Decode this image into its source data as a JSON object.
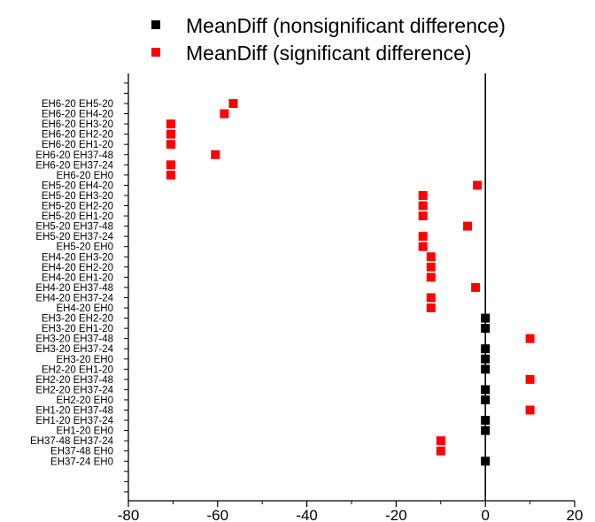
{
  "chart_data": {
    "type": "scatter",
    "legend": {
      "placement": "top",
      "entries": [
        {
          "label": "MeanDiff (nonsignificant difference)",
          "color": "#000000"
        },
        {
          "label": "MeanDiff (significant difference)",
          "color": "#ff0000"
        }
      ]
    },
    "xlim": [
      -80,
      20
    ],
    "xticks": [
      "-80",
      "-60",
      "-40",
      "-20",
      "0",
      "20"
    ],
    "categories": [
      "EH6-20  EH5-20",
      "EH6-20  EH4-20",
      "EH6-20  EH3-20",
      "EH6-20  EH2-20",
      "EH6-20  EH1-20",
      "EH6-20  EH37-48",
      "EH6-20  EH37-24",
      "EH6-20  EH0",
      "EH5-20  EH4-20",
      "EH5-20  EH3-20",
      "EH5-20  EH2-20",
      "EH5-20  EH1-20",
      "EH5-20  EH37-48",
      "EH5-20  EH37-24",
      "EH5-20  EH0",
      "EH4-20  EH3-20",
      "EH4-20  EH2-20",
      "EH4-20  EH1-20",
      "EH4-20  EH37-48",
      "EH4-20  EH37-24",
      "EH4-20  EH0",
      "EH3-20  EH2-20",
      "EH3-20  EH1-20",
      "EH3-20  EH37-48",
      "EH3-20  EH37-24",
      "EH3-20  EH0",
      "EH2-20  EH1-20",
      "EH2-20  EH37-48",
      "EH2-20  EH37-24",
      "EH2-20  EH0",
      "EH1-20  EH37-48",
      "EH1-20  EH37-24",
      "EH1-20  EH0",
      "EH37-48  EH37-24",
      "EH37-48  EH0",
      "EH37-24  EH0"
    ],
    "series": [
      {
        "name": "MeanDiff (nonsignificant difference)",
        "color": "#000000",
        "points": [
          {
            "category": "EH3-20  EH2-20",
            "x": 0
          },
          {
            "category": "EH3-20  EH1-20",
            "x": 0
          },
          {
            "category": "EH3-20  EH37-24",
            "x": 0
          },
          {
            "category": "EH3-20  EH0",
            "x": 0
          },
          {
            "category": "EH2-20  EH1-20",
            "x": 0
          },
          {
            "category": "EH2-20  EH37-24",
            "x": 0
          },
          {
            "category": "EH2-20  EH0",
            "x": 0
          },
          {
            "category": "EH1-20  EH37-24",
            "x": 0
          },
          {
            "category": "EH1-20  EH0",
            "x": 0
          },
          {
            "category": "EH37-24  EH0",
            "x": 0
          }
        ]
      },
      {
        "name": "MeanDiff (significant difference)",
        "color": "#ff0000",
        "points": [
          {
            "category": "EH6-20  EH5-20",
            "x": -56.5
          },
          {
            "category": "EH6-20  EH4-20",
            "x": -58.5
          },
          {
            "category": "EH6-20  EH3-20",
            "x": -70.5
          },
          {
            "category": "EH6-20  EH2-20",
            "x": -70.5
          },
          {
            "category": "EH6-20  EH1-20",
            "x": -70.5
          },
          {
            "category": "EH6-20  EH37-48",
            "x": -60.5
          },
          {
            "category": "EH6-20  EH37-24",
            "x": -70.5
          },
          {
            "category": "EH6-20  EH0",
            "x": -70.5
          },
          {
            "category": "EH5-20  EH4-20",
            "x": -1.8
          },
          {
            "category": "EH5-20  EH3-20",
            "x": -14
          },
          {
            "category": "EH5-20  EH2-20",
            "x": -14
          },
          {
            "category": "EH5-20  EH1-20",
            "x": -14
          },
          {
            "category": "EH5-20  EH37-48",
            "x": -4
          },
          {
            "category": "EH5-20  EH37-24",
            "x": -14
          },
          {
            "category": "EH5-20  EH0",
            "x": -14
          },
          {
            "category": "EH4-20  EH3-20",
            "x": -12.2
          },
          {
            "category": "EH4-20  EH2-20",
            "x": -12.2
          },
          {
            "category": "EH4-20  EH1-20",
            "x": -12.2
          },
          {
            "category": "EH4-20  EH37-48",
            "x": -2.2
          },
          {
            "category": "EH4-20  EH37-24",
            "x": -12.2
          },
          {
            "category": "EH4-20  EH0",
            "x": -12.2
          },
          {
            "category": "EH3-20  EH37-48",
            "x": 10
          },
          {
            "category": "EH2-20  EH37-48",
            "x": 10
          },
          {
            "category": "EH1-20  EH37-48",
            "x": 10
          },
          {
            "category": "EH37-48  EH37-24",
            "x": -10
          },
          {
            "category": "EH37-48  EH0",
            "x": -10
          }
        ]
      }
    ],
    "grid": false
  }
}
